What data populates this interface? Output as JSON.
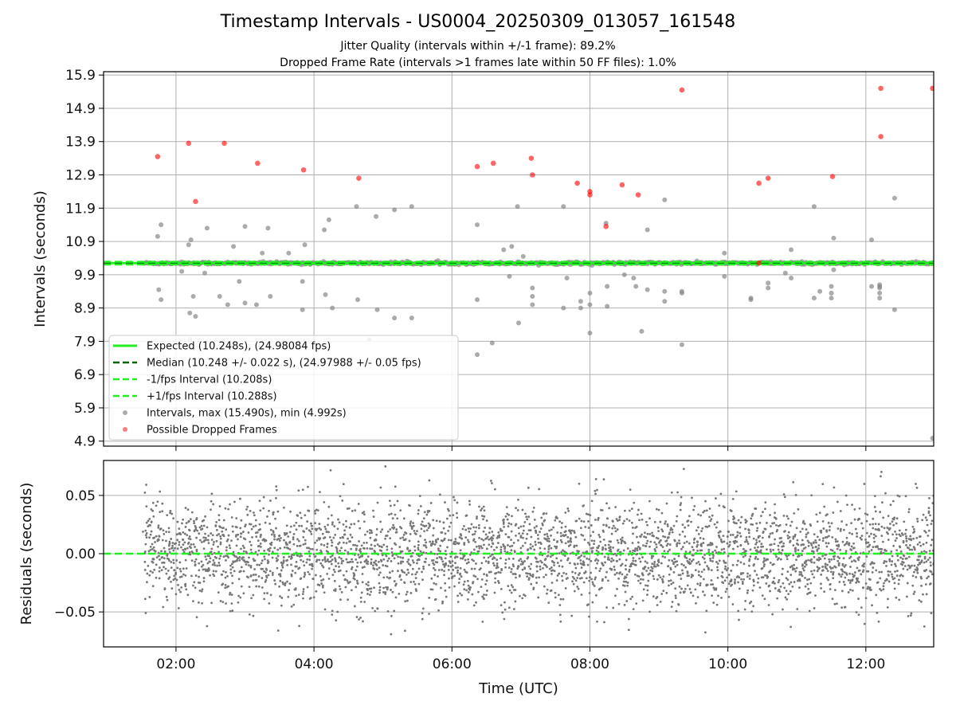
{
  "chart_data": [
    {
      "type": "scatter",
      "title": "Timestamp Intervals - US0004_20250309_013057_161548",
      "subtitle_1": "Jitter Quality (intervals within +/-1 frame): 89.2%",
      "subtitle_2": "Dropped Frame Rate (intervals >1 frames late within 50 FF files): 1.0%",
      "ylabel": "Intervals (seconds)",
      "xlim": [
        "00:57",
        "12:59"
      ],
      "ylim": [
        4.75,
        16.0
      ],
      "y_ticks": [
        "4.9",
        "5.9",
        "6.9",
        "7.9",
        "8.9",
        "9.9",
        "10.9",
        "11.9",
        "12.9",
        "13.9",
        "14.9",
        "15.9"
      ],
      "grid": true,
      "legend_position": "lower-left",
      "reference_lines": [
        {
          "name": "Expected (10.248s), (24.98084 fps)",
          "y": 10.248,
          "style": "solid",
          "color": "#22ee22"
        },
        {
          "name": "Median (10.248 +/- 0.022 s), (24.97988 +/- 0.05 fps)",
          "y": 10.248,
          "style": "dashed",
          "color": "#006400"
        },
        {
          "name": "-1/fps Interval (10.208s)",
          "y": 10.208,
          "style": "dashed",
          "color": "#22ee22"
        },
        {
          "name": "+1/fps Interval (10.288s)",
          "y": 10.288,
          "style": "dashed",
          "color": "#22ee22"
        }
      ],
      "series": [
        {
          "name": "Intervals, max (15.490s), min (4.992s)",
          "color": "#888888",
          "outliers": [
            {
              "x": "01:44",
              "y": 11.05
            },
            {
              "x": "01:47",
              "y": 11.4
            },
            {
              "x": "01:45",
              "y": 9.45
            },
            {
              "x": "01:47",
              "y": 9.15
            },
            {
              "x": "02:11",
              "y": 10.8
            },
            {
              "x": "02:13",
              "y": 10.95
            },
            {
              "x": "02:12",
              "y": 7.95
            },
            {
              "x": "02:12",
              "y": 8.75
            },
            {
              "x": "02:17",
              "y": 8.65
            },
            {
              "x": "02:15",
              "y": 9.25
            },
            {
              "x": "02:05",
              "y": 10.0
            },
            {
              "x": "02:25",
              "y": 9.95
            },
            {
              "x": "02:27",
              "y": 11.3
            },
            {
              "x": "02:38",
              "y": 9.25
            },
            {
              "x": "02:45",
              "y": 9.0
            },
            {
              "x": "02:50",
              "y": 10.75
            },
            {
              "x": "02:55",
              "y": 9.7
            },
            {
              "x": "03:00",
              "y": 11.35
            },
            {
              "x": "03:00",
              "y": 9.05
            },
            {
              "x": "03:10",
              "y": 9.0
            },
            {
              "x": "03:15",
              "y": 10.55
            },
            {
              "x": "03:20",
              "y": 11.3
            },
            {
              "x": "03:22",
              "y": 9.25
            },
            {
              "x": "03:38",
              "y": 10.55
            },
            {
              "x": "03:50",
              "y": 8.85
            },
            {
              "x": "03:52",
              "y": 10.8
            },
            {
              "x": "03:50",
              "y": 9.7
            },
            {
              "x": "04:09",
              "y": 11.25
            },
            {
              "x": "04:13",
              "y": 11.55
            },
            {
              "x": "04:10",
              "y": 9.3
            },
            {
              "x": "04:16",
              "y": 8.9
            },
            {
              "x": "04:37",
              "y": 11.95
            },
            {
              "x": "04:38",
              "y": 9.15
            },
            {
              "x": "04:48",
              "y": 7.95
            },
            {
              "x": "04:54",
              "y": 11.65
            },
            {
              "x": "04:55",
              "y": 8.85
            },
            {
              "x": "05:10",
              "y": 11.85
            },
            {
              "x": "05:10",
              "y": 8.6
            },
            {
              "x": "05:25",
              "y": 11.95
            },
            {
              "x": "05:25",
              "y": 8.6
            },
            {
              "x": "06:22",
              "y": 11.4
            },
            {
              "x": "06:22",
              "y": 9.15
            },
            {
              "x": "06:22",
              "y": 7.5
            },
            {
              "x": "06:35",
              "y": 7.85
            },
            {
              "x": "06:45",
              "y": 10.65
            },
            {
              "x": "06:50",
              "y": 9.85
            },
            {
              "x": "06:52",
              "y": 10.75
            },
            {
              "x": "06:57",
              "y": 11.95
            },
            {
              "x": "06:58",
              "y": 8.45
            },
            {
              "x": "07:02",
              "y": 10.45
            },
            {
              "x": "07:10",
              "y": 9.25
            },
            {
              "x": "07:10",
              "y": 9.0
            },
            {
              "x": "07:10",
              "y": 9.5
            },
            {
              "x": "07:37",
              "y": 11.95
            },
            {
              "x": "07:37",
              "y": 8.9
            },
            {
              "x": "07:40",
              "y": 9.8
            },
            {
              "x": "07:52",
              "y": 8.9
            },
            {
              "x": "07:52",
              "y": 9.1
            },
            {
              "x": "08:00",
              "y": 8.15
            },
            {
              "x": "08:00",
              "y": 9.35
            },
            {
              "x": "08:00",
              "y": 9.0
            },
            {
              "x": "08:14",
              "y": 11.45
            },
            {
              "x": "08:15",
              "y": 9.55
            },
            {
              "x": "08:15",
              "y": 8.95
            },
            {
              "x": "08:30",
              "y": 9.9
            },
            {
              "x": "08:38",
              "y": 9.8
            },
            {
              "x": "08:40",
              "y": 9.55
            },
            {
              "x": "08:45",
              "y": 8.2
            },
            {
              "x": "08:50",
              "y": 11.25
            },
            {
              "x": "08:50",
              "y": 9.45
            },
            {
              "x": "09:05",
              "y": 12.15
            },
            {
              "x": "09:05",
              "y": 9.4
            },
            {
              "x": "09:05",
              "y": 9.1
            },
            {
              "x": "09:20",
              "y": 9.4
            },
            {
              "x": "09:20",
              "y": 7.8
            },
            {
              "x": "09:20",
              "y": 9.35
            },
            {
              "x": "09:57",
              "y": 10.55
            },
            {
              "x": "09:57",
              "y": 9.85
            },
            {
              "x": "10:20",
              "y": 9.15
            },
            {
              "x": "10:20",
              "y": 9.2
            },
            {
              "x": "10:35",
              "y": 9.65
            },
            {
              "x": "10:35",
              "y": 9.5
            },
            {
              "x": "10:50",
              "y": 9.95
            },
            {
              "x": "10:55",
              "y": 10.65
            },
            {
              "x": "10:55",
              "y": 9.8
            },
            {
              "x": "11:15",
              "y": 11.95
            },
            {
              "x": "11:15",
              "y": 9.2
            },
            {
              "x": "11:20",
              "y": 9.4
            },
            {
              "x": "11:30",
              "y": 9.55
            },
            {
              "x": "11:30",
              "y": 9.35
            },
            {
              "x": "11:32",
              "y": 10.05
            },
            {
              "x": "11:30",
              "y": 9.2
            },
            {
              "x": "11:32",
              "y": 11.0
            },
            {
              "x": "12:05",
              "y": 10.95
            },
            {
              "x": "12:05",
              "y": 9.55
            },
            {
              "x": "12:12",
              "y": 9.2
            },
            {
              "x": "12:12",
              "y": 9.5
            },
            {
              "x": "12:12",
              "y": 9.35
            },
            {
              "x": "12:12",
              "y": 9.55
            },
            {
              "x": "12:12",
              "y": 9.6
            },
            {
              "x": "12:25",
              "y": 12.2
            },
            {
              "x": "12:25",
              "y": 8.85
            },
            {
              "x": "12:58",
              "y": 4.99
            }
          ]
        },
        {
          "name": "Possible Dropped Frames",
          "color": "#ff0000",
          "values": [
            {
              "x": "01:44",
              "y": 13.45
            },
            {
              "x": "02:11",
              "y": 13.85
            },
            {
              "x": "02:17",
              "y": 12.1
            },
            {
              "x": "02:42",
              "y": 13.85
            },
            {
              "x": "03:11",
              "y": 13.25
            },
            {
              "x": "03:51",
              "y": 13.05
            },
            {
              "x": "04:39",
              "y": 12.8
            },
            {
              "x": "06:22",
              "y": 13.15
            },
            {
              "x": "06:36",
              "y": 13.25
            },
            {
              "x": "07:09",
              "y": 13.4
            },
            {
              "x": "07:10",
              "y": 12.9
            },
            {
              "x": "07:49",
              "y": 12.65
            },
            {
              "x": "08:00",
              "y": 12.4
            },
            {
              "x": "08:00",
              "y": 12.3
            },
            {
              "x": "08:14",
              "y": 11.35
            },
            {
              "x": "08:28",
              "y": 12.6
            },
            {
              "x": "08:42",
              "y": 12.3
            },
            {
              "x": "09:20",
              "y": 15.45
            },
            {
              "x": "10:27",
              "y": 10.25
            },
            {
              "x": "10:27",
              "y": 12.65
            },
            {
              "x": "10:35",
              "y": 12.8
            },
            {
              "x": "11:31",
              "y": 12.85
            },
            {
              "x": "12:13",
              "y": 14.05
            },
            {
              "x": "12:13",
              "y": 15.5
            },
            {
              "x": "12:58",
              "y": 15.5
            }
          ]
        }
      ]
    },
    {
      "type": "scatter",
      "ylabel": "Residuals (seconds)",
      "xlabel": "Time (UTC)",
      "xlim": [
        "00:57",
        "12:59"
      ],
      "ylim": [
        -0.08,
        0.08
      ],
      "x_ticks": [
        "02:00",
        "04:00",
        "06:00",
        "08:00",
        "10:00",
        "12:00"
      ],
      "y_ticks": [
        "−0.05",
        "0.00",
        "0.05"
      ],
      "grid": true,
      "reference_line": {
        "y": 0.0,
        "style": "dashed",
        "color": "#22ee22"
      },
      "series": [
        {
          "name": "",
          "color": "#777777",
          "x_range": [
            "01:32",
            "12:59"
          ],
          "std": 0.022,
          "approx_points": 3600
        }
      ]
    }
  ],
  "legend": {
    "items": [
      {
        "label": "Expected (10.248s), (24.98084 fps)",
        "kind": "line-solid",
        "color": "#22ee22"
      },
      {
        "label": "Median (10.248 +/- 0.022 s), (24.97988 +/- 0.05 fps)",
        "kind": "line-dashed",
        "color": "#006400"
      },
      {
        "label": "-1/fps Interval (10.208s)",
        "kind": "line-dashed",
        "color": "#22ee22"
      },
      {
        "label": "+1/fps Interval (10.288s)",
        "kind": "line-dashed",
        "color": "#22ee22"
      },
      {
        "label": "Intervals, max (15.490s), min (4.992s)",
        "kind": "marker",
        "color": "#888888"
      },
      {
        "label": "Possible Dropped Frames",
        "kind": "marker",
        "color": "#ff4444"
      }
    ]
  }
}
